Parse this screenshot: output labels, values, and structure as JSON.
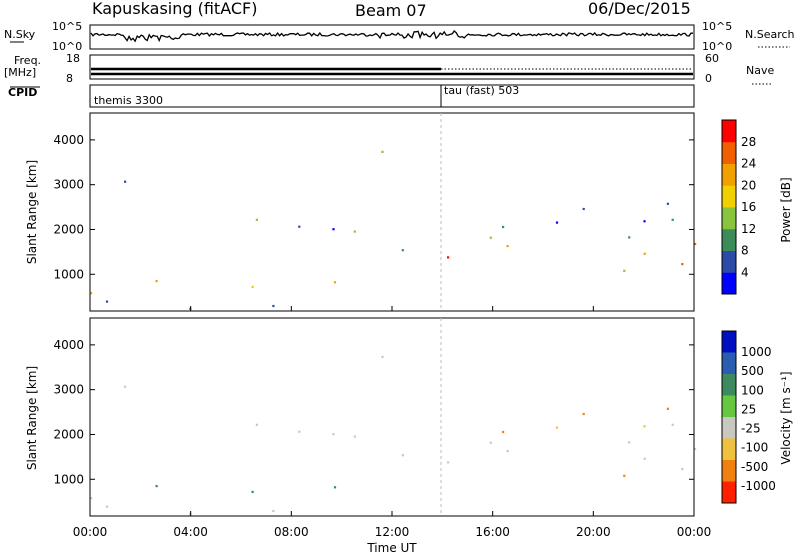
{
  "header": {
    "station": "Kapuskasing (fitACF)",
    "beam": "Beam 07",
    "date": "06/Dec/2015"
  },
  "top_panels": {
    "nsky_label": "N.Sky",
    "nsky_ticks": [
      "10^5",
      "10^0"
    ],
    "nsearch_label": "N.Search",
    "nsearch_ticks": [
      "10^5",
      "10^0"
    ],
    "freq_label": "Freq.",
    "freq_unit": "[MHz]",
    "freq_ticks": [
      "18",
      "8"
    ],
    "nave_label": "Nave",
    "nave_ticks": [
      "60",
      "0"
    ],
    "cpid_label": "CPID",
    "cpid_segments": [
      {
        "label": "themis 3300",
        "start_hour": 0
      },
      {
        "label": "tau (fast) 503",
        "start_hour": 14
      }
    ]
  },
  "chart_data": [
    {
      "type": "heatmap",
      "name": "power-panel",
      "ylabel": "Slant Range [km]",
      "yticks": [
        "1000",
        "2000",
        "3000",
        "4000"
      ],
      "ylim": [
        180,
        4600
      ],
      "xlim": [
        0,
        24
      ],
      "colorbar_label": "Power [dB]",
      "colorbar_ticks": [
        "4",
        "8",
        "12",
        "16",
        "20",
        "24",
        "28"
      ],
      "colors": [
        "#0000ff",
        "#2b4ba6",
        "#3c8c5a",
        "#88c43e",
        "#f0d000",
        "#f0a000",
        "#f06000",
        "#ff0000"
      ]
    },
    {
      "type": "heatmap",
      "name": "velocity-panel",
      "ylabel": "Slant Range [km]",
      "yticks": [
        "1000",
        "2000",
        "3000",
        "4000"
      ],
      "ylim": [
        180,
        4600
      ],
      "xlim": [
        0,
        24
      ],
      "xlabel": "Time UT",
      "xticks": [
        "00:00",
        "04:00",
        "08:00",
        "12:00",
        "16:00",
        "20:00",
        "00:00"
      ],
      "colorbar_label": "Velocity [m s⁻¹]",
      "colorbar_ticks": [
        "1000",
        "500",
        "100",
        "25",
        "-25",
        "-100",
        "-500",
        "-1000"
      ],
      "colors": [
        "#0010c0",
        "#2a5cb0",
        "#3e8a60",
        "#66c840",
        "#c8c8c0",
        "#f0c040",
        "#f08010",
        "#ff2000"
      ]
    }
  ]
}
